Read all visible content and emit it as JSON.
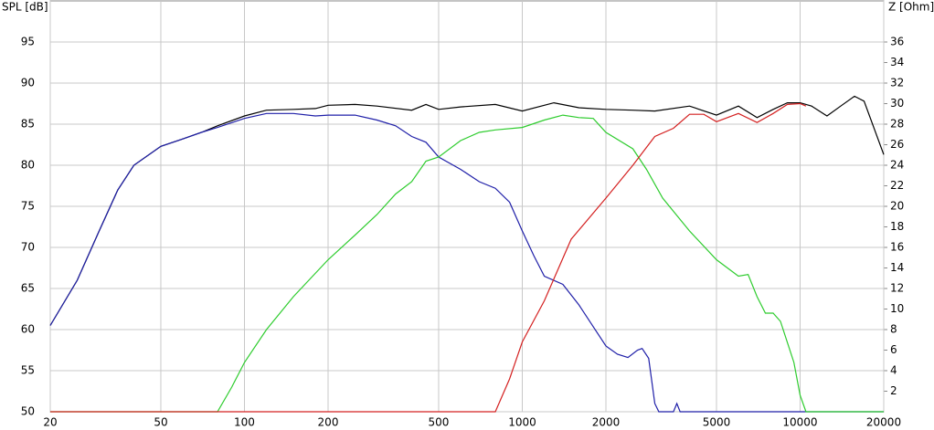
{
  "chart_data": {
    "type": "line",
    "ylabel": "SPL [dB]",
    "y2label": "Z [Ohm]",
    "xscale": "log",
    "grid": true,
    "xlim": [
      20,
      20000
    ],
    "xticks": [
      20,
      50,
      100,
      200,
      500,
      1000,
      2000,
      5000,
      10000,
      20000
    ],
    "ylim": [
      50,
      100
    ],
    "yticks": [
      50,
      55,
      60,
      65,
      70,
      75,
      80,
      85,
      90,
      95
    ],
    "y2lim": [
      0,
      40
    ],
    "y2ticks": [
      2,
      4,
      6,
      8,
      10,
      12,
      14,
      16,
      18,
      20,
      22,
      24,
      26,
      28,
      30,
      32,
      34,
      36
    ],
    "series": [
      {
        "color": "#000000",
        "x": [
          20,
          25,
          30,
          35,
          40,
          50,
          60,
          70,
          80,
          100,
          120,
          150,
          180,
          200,
          250,
          300,
          400,
          450,
          500,
          600,
          800,
          1000,
          1300,
          1600,
          2000,
          2500,
          3000,
          4000,
          5000,
          6000,
          7000,
          8000,
          9000,
          10000,
          11000,
          12500,
          14000,
          15700,
          17000,
          20000
        ],
        "values": [
          60.5,
          66,
          72,
          77,
          80,
          82.3,
          83.2,
          84,
          84.8,
          86,
          86.7,
          86.8,
          86.9,
          87.3,
          87.4,
          87.2,
          86.7,
          87.4,
          86.8,
          87.1,
          87.4,
          86.6,
          87.6,
          87.0,
          86.8,
          86.7,
          86.6,
          87.2,
          86.1,
          87.2,
          85.8,
          86.8,
          87.6,
          87.6,
          87.2,
          86,
          87.2,
          88.4,
          87.8,
          81.3
        ]
      },
      {
        "color": "#1f1fa8",
        "x": [
          20,
          25,
          30,
          35,
          40,
          50,
          60,
          70,
          80,
          100,
          120,
          150,
          180,
          200,
          250,
          300,
          350,
          400,
          450,
          500,
          600,
          700,
          800,
          900,
          1000,
          1100,
          1200,
          1400,
          1600,
          2000,
          2200,
          2400,
          2600,
          2700,
          2850,
          3000,
          3100,
          3500,
          3600,
          3700,
          20000
        ],
        "values": [
          60.5,
          66,
          72,
          77,
          80,
          82.3,
          83.2,
          84,
          84.6,
          85.7,
          86.3,
          86.3,
          86.0,
          86.1,
          86.1,
          85.5,
          84.8,
          83.5,
          82.8,
          81.0,
          79.5,
          78,
          77.2,
          75.5,
          72,
          69,
          66.5,
          65.5,
          63,
          58,
          57,
          56.6,
          57.5,
          57.7,
          56.5,
          51,
          50,
          50,
          51,
          50,
          50
        ]
      },
      {
        "color": "#2ecc2e",
        "x": [
          20,
          80,
          90,
          100,
          120,
          150,
          200,
          250,
          300,
          350,
          400,
          450,
          500,
          600,
          700,
          800,
          1000,
          1200,
          1400,
          1600,
          1800,
          2000,
          2500,
          2800,
          3200,
          4000,
          5000,
          6000,
          6500,
          7000,
          7500,
          8000,
          8500,
          9500,
          10000,
          10500,
          20000
        ],
        "values": [
          50,
          50,
          53,
          56,
          60,
          64,
          68.5,
          71.5,
          74,
          76.5,
          78,
          80.5,
          81,
          83,
          84,
          84.3,
          84.6,
          85.5,
          86.1,
          85.8,
          85.7,
          84,
          82,
          79.5,
          76,
          72,
          68.5,
          66.5,
          66.7,
          64,
          62,
          62,
          61,
          56,
          52,
          50,
          50
        ]
      },
      {
        "color": "#d42020",
        "x": [
          20,
          800,
          900,
          1000,
          1200,
          1500,
          2000,
          2500,
          3000,
          3500,
          4000,
          4500,
          5000,
          6000,
          7000,
          8000,
          9000,
          10000,
          10500
        ],
        "values": [
          50,
          50,
          54,
          58.5,
          63.5,
          71,
          76,
          80,
          83.5,
          84.5,
          86.2,
          86.2,
          85.3,
          86.3,
          85.2,
          86.3,
          87.4,
          87.5,
          87.2
        ]
      }
    ]
  }
}
